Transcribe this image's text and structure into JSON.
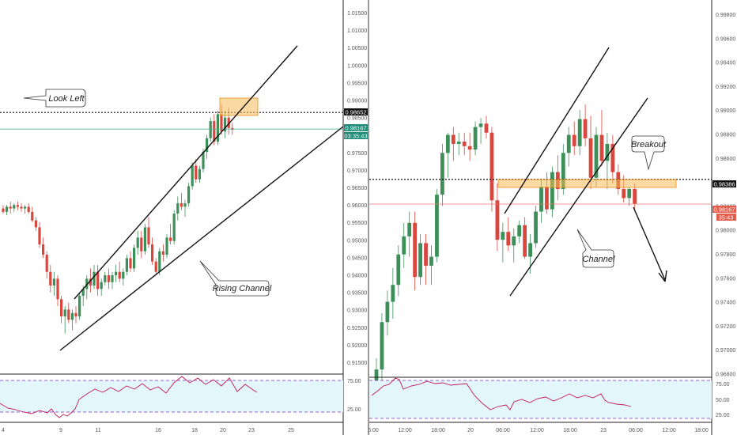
{
  "colors": {
    "up": "#3d8f5a",
    "down": "#d9463d",
    "line": "#111111",
    "rsi_line": "#c2185b",
    "rsi_band": "#e3f6fb",
    "rsi_dash": "#7b2cbf",
    "axis_text": "#555555",
    "zone_fill": "#f7b955",
    "zone_stroke": "#e8901a",
    "price_badge_dark": "#111111",
    "price_badge_green": "#1f8c79",
    "price_badge_red": "#e35b4a",
    "hline_green": "#57b39a",
    "hline_red": "#e87a70"
  },
  "left_panel": {
    "price_axis": [
      "1.01500",
      "1.01000",
      "1.00500",
      "1.00000",
      "0.99500",
      "0.99000",
      "0.98500",
      "0.98000",
      "0.97500",
      "0.97000",
      "0.96500",
      "0.96000",
      "0.95500",
      "0.95000",
      "0.94500",
      "0.94000",
      "0.93500",
      "0.93000",
      "0.92500",
      "0.92000",
      "0.91500"
    ],
    "x_labels": [
      "4",
      "9",
      "11",
      "16",
      "18",
      "20",
      "23",
      "25"
    ],
    "rsi_labels": [
      "75.00",
      "25.00"
    ],
    "price_badges": {
      "resistance": "0.98652",
      "current": "0.98167",
      "timer": "03:35:43"
    },
    "annotations": {
      "look_left": "Look Left",
      "rising_channel": "Rising Channel"
    }
  },
  "right_panel": {
    "price_axis": [
      "0.99800",
      "0.99600",
      "0.99400",
      "0.99200",
      "0.99000",
      "0.98800",
      "0.98600",
      "0.98400",
      "0.98200",
      "0.98000",
      "0.97800",
      "0.97600",
      "0.97400",
      "0.97200",
      "0.97000",
      "0.96800"
    ],
    "x_labels": [
      "6:00",
      "12:00",
      "18:00",
      "20",
      "06:00",
      "12:00",
      "18:00",
      "23",
      "06:00",
      "12:00",
      "18:00"
    ],
    "rsi_labels": [
      "75.00",
      "50.00",
      "25.00"
    ],
    "price_badges": {
      "support": "0.98386",
      "current": "0.98167",
      "timer": "35:43"
    },
    "annotations": {
      "breakout": "Breakout",
      "channel": "Channel"
    }
  },
  "chart_data": [
    {
      "type": "candlestick",
      "panel": "left",
      "ylim": [
        0.912,
        1.0175
      ],
      "candles": [
        [
          0.9585,
          0.9595,
          0.957,
          0.9575
        ],
        [
          0.9575,
          0.9595,
          0.9565,
          0.959
        ],
        [
          0.959,
          0.9605,
          0.957,
          0.9585
        ],
        [
          0.9585,
          0.96,
          0.9575,
          0.9595
        ],
        [
          0.9595,
          0.9605,
          0.958,
          0.959
        ],
        [
          0.959,
          0.96,
          0.9575,
          0.9585
        ],
        [
          0.9585,
          0.9595,
          0.957,
          0.959
        ],
        [
          0.959,
          0.96,
          0.957,
          0.9575
        ],
        [
          0.9575,
          0.959,
          0.9545,
          0.955
        ],
        [
          0.955,
          0.956,
          0.952,
          0.953
        ],
        [
          0.953,
          0.9545,
          0.947,
          0.948
        ],
        [
          0.948,
          0.95,
          0.944,
          0.945
        ],
        [
          0.945,
          0.946,
          0.938,
          0.94
        ],
        [
          0.94,
          0.942,
          0.934,
          0.936
        ],
        [
          0.936,
          0.94,
          0.933,
          0.938
        ],
        [
          0.938,
          0.939,
          0.93,
          0.932
        ],
        [
          0.932,
          0.933,
          0.925,
          0.927
        ],
        [
          0.927,
          0.93,
          0.922,
          0.929
        ],
        [
          0.929,
          0.931,
          0.925,
          0.926
        ],
        [
          0.926,
          0.929,
          0.923,
          0.928
        ],
        [
          0.928,
          0.93,
          0.925,
          0.927
        ],
        [
          0.927,
          0.934,
          0.926,
          0.933
        ],
        [
          0.933,
          0.936,
          0.93,
          0.935
        ],
        [
          0.935,
          0.939,
          0.932,
          0.938
        ],
        [
          0.938,
          0.941,
          0.934,
          0.936
        ],
        [
          0.936,
          0.942,
          0.935,
          0.94
        ],
        [
          0.94,
          0.942,
          0.933,
          0.935
        ],
        [
          0.935,
          0.938,
          0.933,
          0.937
        ],
        [
          0.937,
          0.94,
          0.936,
          0.939
        ],
        [
          0.939,
          0.941,
          0.935,
          0.937
        ],
        [
          0.937,
          0.94,
          0.935,
          0.939
        ],
        [
          0.939,
          0.942,
          0.937,
          0.94
        ],
        [
          0.94,
          0.943,
          0.937,
          0.938
        ],
        [
          0.938,
          0.941,
          0.936,
          0.94
        ],
        [
          0.94,
          0.945,
          0.939,
          0.944
        ],
        [
          0.944,
          0.946,
          0.94,
          0.941
        ],
        [
          0.941,
          0.948,
          0.94,
          0.947
        ],
        [
          0.947,
          0.952,
          0.945,
          0.95
        ],
        [
          0.95,
          0.952,
          0.944,
          0.946
        ],
        [
          0.946,
          0.954,
          0.945,
          0.953
        ],
        [
          0.953,
          0.956,
          0.947,
          0.948
        ],
        [
          0.948,
          0.95,
          0.942,
          0.943
        ],
        [
          0.943,
          0.944,
          0.939,
          0.94
        ],
        [
          0.94,
          0.947,
          0.939,
          0.946
        ],
        [
          0.946,
          0.948,
          0.943,
          0.945
        ],
        [
          0.945,
          0.951,
          0.944,
          0.95
        ],
        [
          0.95,
          0.954,
          0.948,
          0.949
        ],
        [
          0.949,
          0.958,
          0.948,
          0.957
        ],
        [
          0.957,
          0.962,
          0.955,
          0.96
        ],
        [
          0.96,
          0.963,
          0.958,
          0.959
        ],
        [
          0.959,
          0.961,
          0.956,
          0.96
        ],
        [
          0.96,
          0.966,
          0.959,
          0.965
        ],
        [
          0.965,
          0.972,
          0.964,
          0.971
        ],
        [
          0.971,
          0.973,
          0.966,
          0.967
        ],
        [
          0.967,
          0.971,
          0.966,
          0.97
        ],
        [
          0.97,
          0.976,
          0.969,
          0.975
        ],
        [
          0.975,
          0.98,
          0.973,
          0.979
        ],
        [
          0.979,
          0.985,
          0.978,
          0.984
        ],
        [
          0.984,
          0.986,
          0.977,
          0.978
        ],
        [
          0.978,
          0.987,
          0.977,
          0.986
        ],
        [
          0.986,
          0.989,
          0.98,
          0.981
        ],
        [
          0.981,
          0.987,
          0.979,
          0.985
        ],
        [
          0.985,
          0.988,
          0.98,
          0.982
        ],
        [
          0.982,
          0.9835,
          0.98,
          0.9815
        ]
      ]
    },
    {
      "type": "candlestick",
      "panel": "right",
      "ylim": [
        0.9668,
        0.9992
      ],
      "candles": [
        [
          0.9655,
          0.968,
          0.965,
          0.967
        ],
        [
          0.967,
          0.972,
          0.966,
          0.9712
        ],
        [
          0.9712,
          0.974,
          0.97,
          0.973
        ],
        [
          0.973,
          0.976,
          0.9715,
          0.9745
        ],
        [
          0.9745,
          0.978,
          0.9735,
          0.9772
        ],
        [
          0.9772,
          0.98,
          0.976,
          0.9788
        ],
        [
          0.9788,
          0.981,
          0.977,
          0.98
        ],
        [
          0.98,
          0.981,
          0.974,
          0.9752
        ],
        [
          0.9752,
          0.979,
          0.9745,
          0.9782
        ],
        [
          0.9782,
          0.979,
          0.9745,
          0.9762
        ],
        [
          0.9762,
          0.978,
          0.9745,
          0.977
        ],
        [
          0.977,
          0.983,
          0.9765,
          0.9825
        ],
        [
          0.9825,
          0.987,
          0.9815,
          0.9862
        ],
        [
          0.9862,
          0.988,
          0.984,
          0.9878
        ],
        [
          0.9878,
          0.9885,
          0.9855,
          0.987
        ],
        [
          0.987,
          0.988,
          0.986,
          0.9872
        ],
        [
          0.9872,
          0.988,
          0.986,
          0.9868
        ],
        [
          0.9868,
          0.988,
          0.9855,
          0.9865
        ],
        [
          0.9865,
          0.989,
          0.986,
          0.9885
        ],
        [
          0.9885,
          0.9893,
          0.987,
          0.9888
        ],
        [
          0.9888,
          0.9895,
          0.9875,
          0.988
        ],
        [
          0.988,
          0.9885,
          0.981,
          0.982
        ],
        [
          0.982,
          0.9835,
          0.9775,
          0.9785
        ],
        [
          0.9785,
          0.98,
          0.9765,
          0.9792
        ],
        [
          0.9792,
          0.9805,
          0.9775,
          0.978
        ],
        [
          0.978,
          0.9795,
          0.9765,
          0.9788
        ],
        [
          0.9788,
          0.9802,
          0.9782,
          0.9798
        ],
        [
          0.9798,
          0.9805,
          0.9768,
          0.977
        ],
        [
          0.977,
          0.979,
          0.9755,
          0.9782
        ],
        [
          0.9782,
          0.9815,
          0.9778,
          0.981
        ],
        [
          0.981,
          0.9838,
          0.98,
          0.9832
        ],
        [
          0.9832,
          0.9845,
          0.9808,
          0.9812
        ],
        [
          0.9812,
          0.985,
          0.9805,
          0.9845
        ],
        [
          0.9845,
          0.986,
          0.982,
          0.983
        ],
        [
          0.983,
          0.987,
          0.9825,
          0.9862
        ],
        [
          0.9862,
          0.9885,
          0.985,
          0.9878
        ],
        [
          0.9878,
          0.989,
          0.986,
          0.9868
        ],
        [
          0.9868,
          0.99,
          0.986,
          0.9892
        ],
        [
          0.9892,
          0.9905,
          0.9868,
          0.9875
        ],
        [
          0.9875,
          0.9895,
          0.983,
          0.984
        ],
        [
          0.984,
          0.9885,
          0.9832,
          0.9878
        ],
        [
          0.9878,
          0.99,
          0.985,
          0.9855
        ],
        [
          0.9855,
          0.988,
          0.983,
          0.987
        ],
        [
          0.987,
          0.9878,
          0.9835,
          0.9845
        ],
        [
          0.9845,
          0.9852,
          0.9825,
          0.983
        ],
        [
          0.983,
          0.9842,
          0.9818,
          0.9822
        ],
        [
          0.9822,
          0.9832,
          0.9815,
          0.983
        ],
        [
          0.983,
          0.9835,
          0.9812,
          0.9817
        ]
      ]
    }
  ]
}
